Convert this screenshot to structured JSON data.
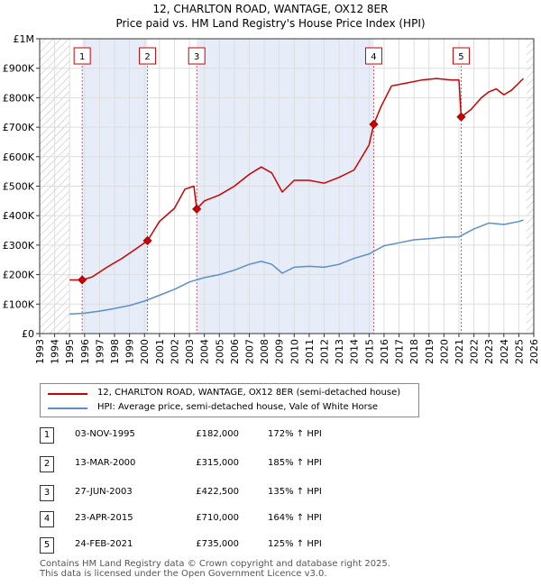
{
  "title_line1": "12, CHARLTON ROAD, WANTAGE, OX12 8ER",
  "title_line2": "Price paid vs. HM Land Registry's House Price Index (HPI)",
  "chart_data": {
    "type": "line",
    "xlim": [
      1993,
      2026
    ],
    "ylim": [
      0,
      1000000
    ],
    "ytick_values": [
      0,
      100000,
      200000,
      300000,
      400000,
      500000,
      600000,
      700000,
      800000,
      900000,
      1000000
    ],
    "ytick_labels": [
      "£0",
      "£100K",
      "£200K",
      "£300K",
      "£400K",
      "£500K",
      "£600K",
      "£700K",
      "£800K",
      "£900K",
      "£1M"
    ],
    "xtick_labels": [
      "1993",
      "1994",
      "1995",
      "1996",
      "1997",
      "1998",
      "1999",
      "2000",
      "2001",
      "2002",
      "2003",
      "2004",
      "2005",
      "2006",
      "2007",
      "2008",
      "2009",
      "2010",
      "2011",
      "2012",
      "2013",
      "2014",
      "2015",
      "2016",
      "2017",
      "2018",
      "2019",
      "2020",
      "2021",
      "2022",
      "2023",
      "2024",
      "2025",
      "2026"
    ],
    "hatched_before": 1995.0,
    "hatched_after": 2025.5,
    "sale_years": [
      1995.84,
      2000.2,
      2003.49,
      2015.31,
      2021.15
    ],
    "sale_prices": [
      182000,
      315000,
      422500,
      710000,
      735000
    ],
    "series": [
      {
        "name": "12, CHARLTON ROAD, WANTAGE, OX12 8ER (semi-detached house)",
        "color": "#cc0000",
        "x": [
          1995.0,
          1995.84,
          1996.5,
          1997.5,
          1998.5,
          1999.5,
          2000.2,
          2001.0,
          2002.0,
          2002.7,
          2003.3,
          2003.49,
          2004.0,
          2005.0,
          2006.0,
          2007.0,
          2007.8,
          2008.5,
          2009.2,
          2010.0,
          2011.0,
          2012.0,
          2013.0,
          2014.0,
          2015.0,
          2015.31,
          2015.8,
          2016.5,
          2017.5,
          2018.5,
          2019.5,
          2020.5,
          2021.0,
          2021.15,
          2021.8,
          2022.5,
          2023.0,
          2023.5,
          2024.0,
          2024.5,
          2025.0,
          2025.3
        ],
        "values": [
          182000,
          182000,
          192000,
          225000,
          255000,
          290000,
          315000,
          380000,
          425000,
          490000,
          500000,
          422500,
          450000,
          470000,
          500000,
          540000,
          565000,
          545000,
          480000,
          520000,
          520000,
          510000,
          530000,
          555000,
          640000,
          710000,
          770000,
          840000,
          850000,
          860000,
          865000,
          860000,
          860000,
          735000,
          760000,
          800000,
          820000,
          830000,
          810000,
          825000,
          850000,
          865000
        ]
      },
      {
        "name": "HPI: Average price, semi-detached house, Vale of White Horse",
        "color": "#5b8fc9",
        "x": [
          1995.0,
          1996.0,
          1997.0,
          1998.0,
          1999.0,
          2000.0,
          2001.0,
          2002.0,
          2003.0,
          2004.0,
          2005.0,
          2006.0,
          2007.0,
          2007.8,
          2008.5,
          2009.2,
          2010.0,
          2011.0,
          2012.0,
          2013.0,
          2014.0,
          2015.0,
          2016.0,
          2017.0,
          2018.0,
          2019.0,
          2020.0,
          2021.0,
          2022.0,
          2023.0,
          2024.0,
          2025.0,
          2025.3
        ],
        "values": [
          66000,
          69000,
          76000,
          85000,
          95000,
          110000,
          130000,
          150000,
          175000,
          190000,
          200000,
          215000,
          235000,
          245000,
          235000,
          205000,
          225000,
          228000,
          225000,
          235000,
          255000,
          270000,
          298000,
          308000,
          318000,
          322000,
          327000,
          328000,
          355000,
          375000,
          370000,
          380000,
          385000
        ]
      }
    ]
  },
  "legend": [
    {
      "label": "12, CHARLTON ROAD, WANTAGE, OX12 8ER (semi-detached house)",
      "color": "#cc0000"
    },
    {
      "label": "HPI: Average price, semi-detached house, Vale of White Horse",
      "color": "#5b8fc9"
    }
  ],
  "transactions": [
    {
      "num": "1",
      "date": "03-NOV-1995",
      "price": "£182,000",
      "hpi": "172% ↑ HPI"
    },
    {
      "num": "2",
      "date": "13-MAR-2000",
      "price": "£315,000",
      "hpi": "185% ↑ HPI"
    },
    {
      "num": "3",
      "date": "27-JUN-2003",
      "price": "£422,500",
      "hpi": "135% ↑ HPI"
    },
    {
      "num": "4",
      "date": "23-APR-2015",
      "price": "£710,000",
      "hpi": "164% ↑ HPI"
    },
    {
      "num": "5",
      "date": "24-FEB-2021",
      "price": "£735,000",
      "hpi": "125% ↑ HPI"
    }
  ],
  "footer_line1": "Contains HM Land Registry data © Crown copyright and database right 2025.",
  "footer_line2": "This data is licensed under the Open Government Licence v3.0."
}
